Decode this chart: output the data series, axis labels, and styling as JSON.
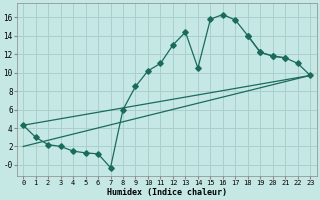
{
  "xlabel": "Humidex (Indice chaleur)",
  "background_color": "#c5e8e5",
  "grid_color": "#aacfcc",
  "line_color": "#1a6b5a",
  "xlim": [
    -0.5,
    23.5
  ],
  "ylim": [
    -1.2,
    17.5
  ],
  "xticks": [
    0,
    1,
    2,
    3,
    4,
    5,
    6,
    7,
    8,
    9,
    10,
    11,
    12,
    13,
    14,
    15,
    16,
    17,
    18,
    19,
    20,
    21,
    22,
    23
  ],
  "yticks": [
    0,
    2,
    4,
    6,
    8,
    10,
    12,
    14,
    16
  ],
  "ytick_labels": [
    "-0",
    "2",
    "4",
    "6",
    "8",
    "10",
    "12",
    "14",
    "16"
  ],
  "curve1_x": [
    0,
    1,
    2,
    3,
    4,
    5,
    6,
    7,
    8,
    9,
    10,
    11,
    12,
    13,
    14,
    15,
    16,
    17,
    18,
    19,
    20,
    21
  ],
  "curve1_y": [
    4.3,
    3.0,
    2.2,
    2.0,
    1.5,
    1.3,
    1.2,
    -0.3,
    6.0,
    8.5,
    10.2,
    11.0,
    13.0,
    14.4,
    10.5,
    15.8,
    16.3,
    15.7,
    14.0,
    12.2,
    11.8,
    11.6
  ],
  "curve2_x": [
    0,
    23
  ],
  "curve2_y": [
    4.3,
    9.7
  ],
  "curve3_x": [
    0,
    23
  ],
  "curve3_y": [
    2.0,
    9.7
  ],
  "curve4_x": [
    18,
    19,
    20,
    21,
    22,
    23
  ],
  "curve4_y": [
    14.0,
    12.2,
    11.8,
    11.6,
    11.0,
    9.7
  ]
}
